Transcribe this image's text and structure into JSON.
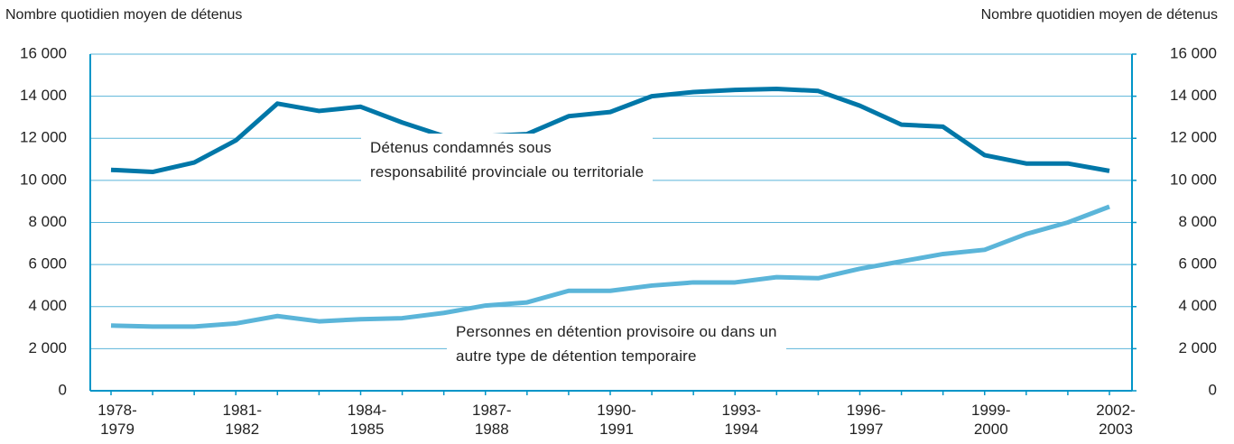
{
  "chart_data": {
    "type": "line",
    "y_axis_label": "Nombre quotidien moyen de détenus",
    "y2_axis_label": "Nombre quotidien moyen de détenus",
    "categories": [
      "1978-\n1979",
      null,
      null,
      "1981-\n1982",
      null,
      null,
      "1984-\n1985",
      null,
      null,
      "1987-\n1988",
      null,
      null,
      "1990-\n1991",
      null,
      null,
      "1993-\n1994",
      null,
      null,
      "1996-\n1997",
      null,
      null,
      "1999-\n2000",
      null,
      null,
      "2002-\n2003"
    ],
    "series": [
      {
        "name": "Détenus condamnés sous\nresponsabilité provinciale ou territoriale",
        "color": "#0077a8",
        "values": [
          10500,
          10400,
          10850,
          11900,
          13650,
          13300,
          13500,
          12750,
          12100,
          12100,
          12200,
          13050,
          13250,
          14000,
          14200,
          14300,
          14350,
          14250,
          13550,
          12650,
          12550,
          11200,
          10800,
          10800,
          10450
        ]
      },
      {
        "name": "Personnes en détention provisoire ou dans un\nautre type de détention temporaire",
        "color": "#5bb5d9",
        "values": [
          3100,
          3050,
          3050,
          3200,
          3550,
          3300,
          3400,
          3450,
          3700,
          4050,
          4200,
          4750,
          4750,
          5000,
          5150,
          5150,
          5400,
          5350,
          5800,
          6150,
          6500,
          6700,
          7450,
          8000,
          8750
        ]
      }
    ],
    "ylim": [
      0,
      16000
    ],
    "yticks": [
      0,
      {
        "value": 2000,
        "label": "2 000"
      },
      {
        "value": 4000,
        "label": "4 000"
      },
      {
        "value": 6000,
        "label": "6 000"
      },
      {
        "value": 8000,
        "label": "8 000"
      },
      {
        "value": 10000,
        "label": "10 000"
      },
      {
        "value": 12000,
        "label": "12 000"
      },
      {
        "value": 14000,
        "label": "14 000"
      },
      {
        "value": 16000,
        "label": "16 000"
      }
    ],
    "y2lim": [
      0,
      16000
    ],
    "y2ticks": [
      0,
      {
        "value": 2000,
        "label": "2 000"
      },
      {
        "value": 4000,
        "label": "4 000"
      },
      {
        "value": 6000,
        "label": "6 000"
      },
      {
        "value": 8000,
        "label": "8 000"
      },
      {
        "value": 10000,
        "label": "10 000"
      },
      {
        "value": 12000,
        "label": "12 000"
      },
      {
        "value": 14000,
        "label": "14 000"
      },
      {
        "value": 16000,
        "label": "16 000"
      }
    ],
    "grid": true,
    "grid_color": "#5bb5d9",
    "axis_color": "#0095c8"
  }
}
